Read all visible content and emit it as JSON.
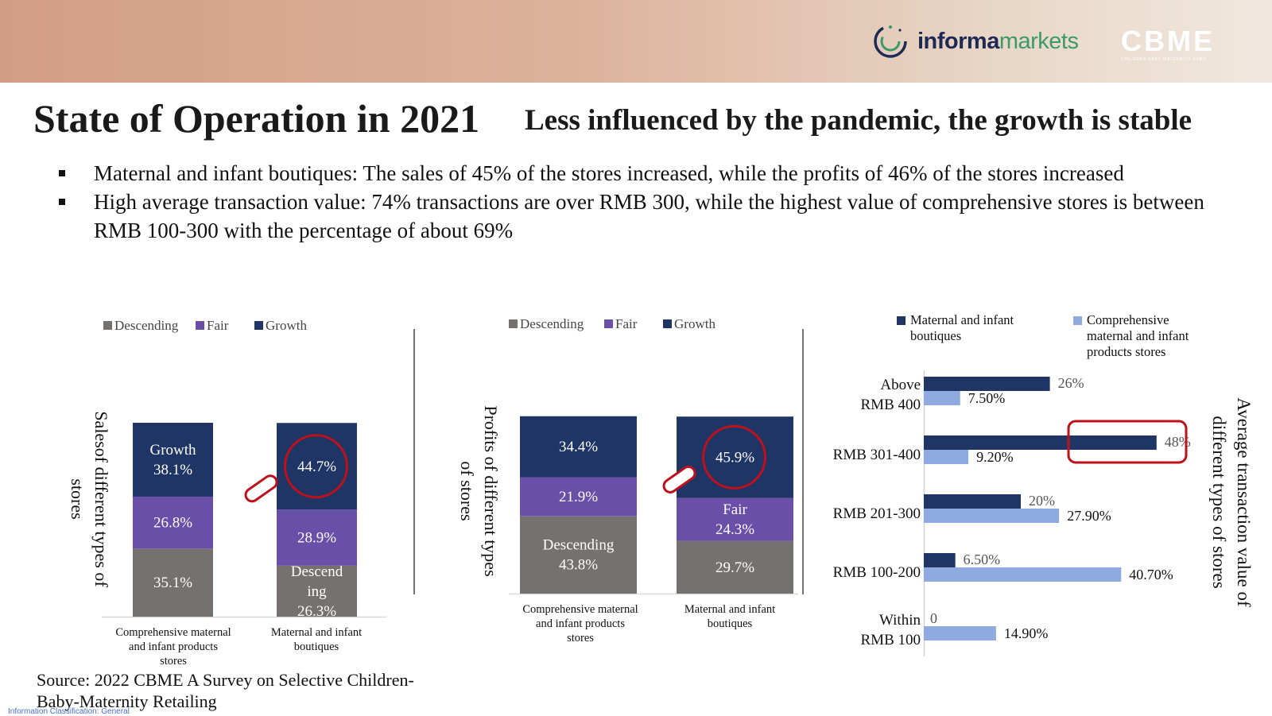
{
  "header": {
    "brand_a": "informa",
    "brand_b": "markets",
    "cbme_logo": "CBME",
    "cbme_tagline": "CHILDREN BABY MATERNITY EXPO"
  },
  "title": "State of Operation in 2021",
  "subtitle": "Less influenced by the pandemic, the growth is stable",
  "bullets": [
    "Maternal and infant boutiques: The sales of 45% of the stores increased, while the profits of 46% of the stores increased",
    "High average transaction value: 74% transactions are over RMB 300, while the highest value of comprehensive stores is between RMB 100-300 with the percentage of about 69%"
  ],
  "source": "Source: 2022 CBME A Survey on Selective Children-Baby-Maternity Retailing",
  "footnote": "Information Classification: General",
  "colors": {
    "descending": "#767171",
    "fair": "#6a4fa8",
    "growth": "#1f3566",
    "light_blue": "#8eaadf",
    "highlight": "#c0101a"
  },
  "chart_data": [
    {
      "type": "bar",
      "stacked": true,
      "title": "",
      "ylabel": "Salesof different types of stores",
      "categories": [
        "Comprehensive maternal and infant products stores",
        "Maternal and infant boutiques"
      ],
      "legend": [
        "Descending",
        "Fair",
        "Growth"
      ],
      "series": [
        {
          "name": "Descending",
          "values": [
            35.1,
            26.3
          ],
          "labels": [
            "35.1%",
            "Descend ing 26.3%"
          ]
        },
        {
          "name": "Fair",
          "values": [
            26.8,
            28.9
          ],
          "labels": [
            "26.8%",
            "28.9%"
          ]
        },
        {
          "name": "Growth",
          "values": [
            38.1,
            44.7
          ],
          "labels": [
            "Growth 38.1%",
            "44.7%"
          ]
        }
      ],
      "highlight": "44.7%"
    },
    {
      "type": "bar",
      "stacked": true,
      "title": "",
      "ylabel": "Profits of different types of stores",
      "categories": [
        "Comprehensive maternal and infant products stores",
        "Maternal and infant boutiques"
      ],
      "legend": [
        "Descending",
        "Fair",
        "Growth"
      ],
      "series": [
        {
          "name": "Descending",
          "values": [
            43.8,
            29.7
          ],
          "labels": [
            "Descending 43.8%",
            "29.7%"
          ]
        },
        {
          "name": "Fair",
          "values": [
            21.9,
            24.3
          ],
          "labels": [
            "21.9%",
            "Fair 24.3%"
          ]
        },
        {
          "name": "Growth",
          "values": [
            34.4,
            45.9
          ],
          "labels": [
            "34.4%",
            "45.9%"
          ]
        }
      ],
      "highlight": "45.9%"
    },
    {
      "type": "bar",
      "orientation": "horizontal",
      "title": "",
      "ylabel": "Average transaction value of different types of stores",
      "categories": [
        "Above RMB 400",
        "RMB 301-400",
        "RMB 201-300",
        "RMB 100-200",
        "Within RMB 100"
      ],
      "legend": [
        "Maternal and infant boutiques",
        "Comprehensive maternal and infant products stores"
      ],
      "series": [
        {
          "name": "Maternal and infant boutiques",
          "values": [
            26,
            48,
            20,
            6.5,
            0
          ],
          "labels": [
            "26%",
            "48%",
            "20%",
            "6.50%",
            "0"
          ]
        },
        {
          "name": "Comprehensive maternal and infant products stores",
          "values": [
            7.5,
            9.2,
            27.9,
            40.7,
            14.9
          ],
          "labels": [
            "7.50%",
            "9.20%",
            "27.90%",
            "40.70%",
            "14.90%"
          ]
        }
      ],
      "xlim": [
        0,
        60
      ],
      "highlight": "48%"
    }
  ]
}
